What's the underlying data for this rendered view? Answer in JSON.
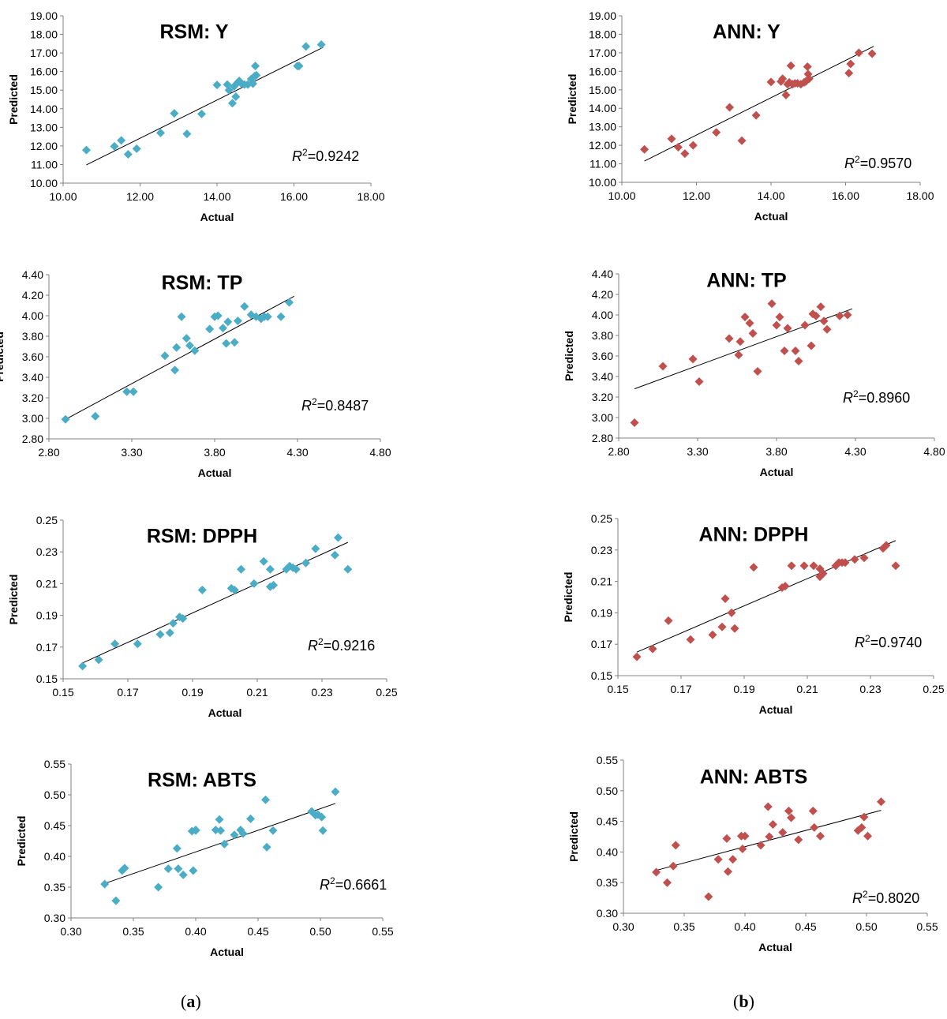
{
  "panel_labels": {
    "a": {
      "open": "(",
      "letter": "a",
      "close": ")"
    },
    "b": {
      "open": "(",
      "letter": "b",
      "close": ")"
    }
  },
  "chart_data": [
    {
      "id": "rsm-y",
      "type": "scatter",
      "title": "RSM: Y",
      "xlabel": "Actual",
      "ylabel": "Predicted",
      "xlim": [
        10,
        19
      ],
      "ylim": [
        10,
        19
      ],
      "xticks": [
        "10.00",
        "12.00",
        "14.00",
        "16.00",
        "18.00"
      ],
      "yticks": [
        "10.00",
        "11.00",
        "12.00",
        "13.00",
        "14.00",
        "15.00",
        "16.00",
        "17.00",
        "18.00",
        "19.00"
      ],
      "r2_label": "R",
      "r2_sup": "2",
      "r2_value": "=0.9242",
      "marker": "diamond",
      "color": "#4bacc6",
      "trend": [
        [
          10.68,
          10.98
        ],
        [
          17.6,
          17.3
        ]
      ],
      "x": [
        10.68,
        11.5,
        11.7,
        11.9,
        12.15,
        12.85,
        13.25,
        13.62,
        14.05,
        14.5,
        14.8,
        14.85,
        14.95,
        15.0,
        15.05,
        15.1,
        15.15,
        15.22,
        15.3,
        15.4,
        15.5,
        15.55,
        15.6,
        15.62,
        15.65,
        16.85,
        16.9,
        17.1,
        17.55
      ],
      "y": [
        11.78,
        11.98,
        12.3,
        11.55,
        11.85,
        12.7,
        13.75,
        12.65,
        13.72,
        15.28,
        15.3,
        15.0,
        14.3,
        15.2,
        14.65,
        15.4,
        15.5,
        15.35,
        15.3,
        15.3,
        15.6,
        15.35,
        15.75,
        16.3,
        15.8,
        16.3,
        16.3,
        17.35,
        17.45
      ]
    },
    {
      "id": "ann-y",
      "type": "scatter",
      "title": "ANN: Y",
      "xlabel": "Actual",
      "ylabel": "Predicted",
      "xlim": [
        10,
        19
      ],
      "ylim": [
        10,
        19
      ],
      "xticks": [
        "10.00",
        "12.00",
        "14.00",
        "16.00",
        "18.00"
      ],
      "yticks": [
        "10.00",
        "11.00",
        "12.00",
        "13.00",
        "14.00",
        "15.00",
        "16.00",
        "17.00",
        "18.00",
        "19.00"
      ],
      "r2_label": "R",
      "r2_sup": "2",
      "r2_value": "=0.9570",
      "marker": "diamond",
      "color": "#c0504d",
      "trend": [
        [
          10.68,
          11.15
        ],
        [
          17.6,
          17.35
        ]
      ],
      "x": [
        10.68,
        11.5,
        11.7,
        11.9,
        12.15,
        12.85,
        13.25,
        13.62,
        14.05,
        14.5,
        14.8,
        14.85,
        14.95,
        15.0,
        15.05,
        15.1,
        15.15,
        15.22,
        15.3,
        15.4,
        15.5,
        15.55,
        15.6,
        15.62,
        15.65,
        16.85,
        16.9,
        17.15,
        17.55
      ],
      "y": [
        11.78,
        12.35,
        11.9,
        11.55,
        12.0,
        12.7,
        14.05,
        12.25,
        13.62,
        15.42,
        15.45,
        15.6,
        14.72,
        15.3,
        15.4,
        16.3,
        15.3,
        15.35,
        15.35,
        15.3,
        15.4,
        15.45,
        16.25,
        15.85,
        15.6,
        15.9,
        16.4,
        17.0,
        16.95
      ]
    },
    {
      "id": "rsm-tp",
      "type": "scatter",
      "title": "RSM: TP",
      "xlabel": "Actual",
      "ylabel": "Predicted",
      "xlim": [
        2.8,
        4.8
      ],
      "ylim": [
        2.8,
        4.4
      ],
      "xticks": [
        "2.80",
        "3.30",
        "3.80",
        "4.30",
        "4.80"
      ],
      "yticks": [
        "2.80",
        "3.00",
        "3.20",
        "3.40",
        "3.60",
        "3.80",
        "4.00",
        "4.20",
        "4.40"
      ],
      "r2_label": "R",
      "r2_sup": "2",
      "r2_value": "=0.8487",
      "marker": "diamond",
      "color": "#4bacc6",
      "trend": [
        [
          2.9,
          2.99
        ],
        [
          4.28,
          4.19
        ]
      ],
      "x": [
        2.9,
        3.08,
        3.27,
        3.31,
        3.5,
        3.56,
        3.57,
        3.6,
        3.63,
        3.65,
        3.68,
        3.77,
        3.8,
        3.82,
        3.85,
        3.87,
        3.88,
        3.92,
        3.94,
        3.98,
        4.02,
        4.05,
        4.08,
        4.1,
        4.12,
        4.2,
        4.25
      ],
      "y": [
        2.99,
        3.02,
        3.26,
        3.26,
        3.61,
        3.47,
        3.69,
        3.99,
        3.78,
        3.71,
        3.66,
        3.87,
        3.99,
        4.0,
        3.88,
        3.73,
        3.94,
        3.74,
        3.95,
        4.09,
        4.01,
        3.99,
        3.97,
        3.99,
        3.99,
        3.99,
        4.13
      ]
    },
    {
      "id": "ann-tp",
      "type": "scatter",
      "title": "ANN: TP",
      "xlabel": "Actual",
      "ylabel": "Predicted",
      "xlim": [
        2.8,
        4.8
      ],
      "ylim": [
        2.8,
        4.4
      ],
      "xticks": [
        "2.80",
        "3.30",
        "3.80",
        "4.30",
        "4.80"
      ],
      "yticks": [
        "2.80",
        "3.00",
        "3.20",
        "3.40",
        "3.60",
        "3.80",
        "4.00",
        "4.20",
        "4.40"
      ],
      "r2_label": "R",
      "r2_sup": "2",
      "r2_value": "=0.8960",
      "marker": "diamond",
      "color": "#c0504d",
      "trend": [
        [
          2.9,
          3.28
        ],
        [
          4.28,
          4.06
        ]
      ],
      "x": [
        2.9,
        3.08,
        3.27,
        3.31,
        3.5,
        3.56,
        3.57,
        3.6,
        3.63,
        3.65,
        3.68,
        3.77,
        3.8,
        3.82,
        3.85,
        3.87,
        3.92,
        3.94,
        3.98,
        4.02,
        4.03,
        4.05,
        4.08,
        4.1,
        4.12,
        4.2,
        4.25
      ],
      "y": [
        2.95,
        3.5,
        3.57,
        3.35,
        3.77,
        3.61,
        3.74,
        3.98,
        3.92,
        3.82,
        3.45,
        4.11,
        3.9,
        3.98,
        3.65,
        3.87,
        3.65,
        3.55,
        3.9,
        3.7,
        4.01,
        3.99,
        4.08,
        3.94,
        3.86,
        3.99,
        4.0
      ]
    },
    {
      "id": "rsm-dpph",
      "type": "scatter",
      "title": "RSM: DPPH",
      "xlabel": "Actual",
      "ylabel": "Predicted",
      "xlim": [
        0.15,
        0.25
      ],
      "ylim": [
        0.15,
        0.25
      ],
      "xticks": [
        "0.15",
        "0.17",
        "0.19",
        "0.21",
        "0.23",
        "0.25"
      ],
      "yticks": [
        "0.15",
        "0.17",
        "0.19",
        "0.21",
        "0.23",
        "0.25"
      ],
      "r2_label": "R",
      "r2_sup": "2",
      "r2_value": "=0.9216",
      "marker": "diamond",
      "color": "#4bacc6",
      "trend": [
        [
          0.156,
          0.16
        ],
        [
          0.238,
          0.236
        ]
      ],
      "x": [
        0.156,
        0.161,
        0.166,
        0.173,
        0.18,
        0.183,
        0.184,
        0.186,
        0.187,
        0.193,
        0.202,
        0.203,
        0.205,
        0.209,
        0.212,
        0.214,
        0.214,
        0.215,
        0.219,
        0.22,
        0.221,
        0.222,
        0.225,
        0.228,
        0.234,
        0.235,
        0.238
      ],
      "y": [
        0.158,
        0.162,
        0.172,
        0.172,
        0.178,
        0.179,
        0.185,
        0.189,
        0.188,
        0.206,
        0.207,
        0.206,
        0.219,
        0.21,
        0.224,
        0.208,
        0.219,
        0.209,
        0.219,
        0.221,
        0.22,
        0.219,
        0.223,
        0.232,
        0.228,
        0.239,
        0.219
      ]
    },
    {
      "id": "ann-dpph",
      "type": "scatter",
      "title": "ANN: DPPH",
      "xlabel": "Actual",
      "ylabel": "Predicted",
      "xlim": [
        0.15,
        0.25
      ],
      "ylim": [
        0.15,
        0.25
      ],
      "xticks": [
        "0.15",
        "0.17",
        "0.19",
        "0.21",
        "0.23",
        "0.25"
      ],
      "yticks": [
        "0.15",
        "0.17",
        "0.19",
        "0.21",
        "0.23",
        "0.25"
      ],
      "r2_label": "R",
      "r2_sup": "2",
      "r2_value": "=0.9740",
      "marker": "diamond",
      "color": "#c0504d",
      "trend": [
        [
          0.156,
          0.165
        ],
        [
          0.238,
          0.236
        ]
      ],
      "x": [
        0.156,
        0.161,
        0.166,
        0.173,
        0.18,
        0.183,
        0.184,
        0.186,
        0.187,
        0.193,
        0.202,
        0.203,
        0.205,
        0.209,
        0.212,
        0.214,
        0.214,
        0.215,
        0.219,
        0.22,
        0.221,
        0.222,
        0.225,
        0.228,
        0.234,
        0.235,
        0.238
      ],
      "y": [
        0.162,
        0.167,
        0.185,
        0.173,
        0.176,
        0.181,
        0.199,
        0.19,
        0.18,
        0.219,
        0.206,
        0.207,
        0.22,
        0.22,
        0.22,
        0.218,
        0.213,
        0.215,
        0.22,
        0.222,
        0.222,
        0.222,
        0.224,
        0.225,
        0.231,
        0.233,
        0.22
      ]
    },
    {
      "id": "rsm-abts",
      "type": "scatter",
      "title": "RSM: ABTS",
      "xlabel": "Actual",
      "ylabel": "Predicted",
      "xlim": [
        0.3,
        0.55
      ],
      "ylim": [
        0.3,
        0.55
      ],
      "xticks": [
        "0.30",
        "0.35",
        "0.40",
        "0.45",
        "0.50",
        "0.55"
      ],
      "yticks": [
        "0.30",
        "0.35",
        "0.40",
        "0.45",
        "0.50",
        "0.55"
      ],
      "r2_label": "R",
      "r2_sup": "2",
      "r2_value": "=0.6661",
      "marker": "diamond",
      "color": "#4bacc6",
      "trend": [
        [
          0.327,
          0.356
        ],
        [
          0.512,
          0.486
        ]
      ],
      "x": [
        0.327,
        0.336,
        0.341,
        0.343,
        0.37,
        0.378,
        0.385,
        0.386,
        0.39,
        0.397,
        0.398,
        0.4,
        0.4,
        0.416,
        0.419,
        0.42,
        0.423,
        0.431,
        0.436,
        0.438,
        0.444,
        0.456,
        0.457,
        0.462,
        0.493,
        0.496,
        0.498,
        0.501,
        0.502,
        0.512
      ],
      "y": [
        0.355,
        0.328,
        0.377,
        0.381,
        0.35,
        0.38,
        0.413,
        0.38,
        0.37,
        0.441,
        0.377,
        0.443,
        0.442,
        0.443,
        0.46,
        0.442,
        0.42,
        0.435,
        0.443,
        0.437,
        0.461,
        0.492,
        0.415,
        0.442,
        0.473,
        0.467,
        0.468,
        0.464,
        0.442,
        0.505
      ]
    },
    {
      "id": "ann-abts",
      "type": "scatter",
      "title": "ANN: ABTS",
      "xlabel": "Actual",
      "ylabel": "Predicted",
      "xlim": [
        0.3,
        0.55
      ],
      "ylim": [
        0.3,
        0.55
      ],
      "xticks": [
        "0.30",
        "0.35",
        "0.40",
        "0.45",
        "0.50",
        "0.55"
      ],
      "yticks": [
        "0.30",
        "0.35",
        "0.40",
        "0.45",
        "0.50",
        "0.55"
      ],
      "r2_label": "R",
      "r2_sup": "2",
      "r2_value": "=0.8020",
      "marker": "diamond",
      "color": "#c0504d",
      "trend": [
        [
          0.327,
          0.37
        ],
        [
          0.512,
          0.468
        ]
      ],
      "x": [
        0.327,
        0.336,
        0.341,
        0.343,
        0.37,
        0.378,
        0.385,
        0.386,
        0.39,
        0.397,
        0.398,
        0.4,
        0.413,
        0.419,
        0.42,
        0.423,
        0.431,
        0.436,
        0.438,
        0.444,
        0.456,
        0.457,
        0.462,
        0.493,
        0.496,
        0.498,
        0.501,
        0.512
      ],
      "y": [
        0.367,
        0.35,
        0.377,
        0.411,
        0.327,
        0.388,
        0.422,
        0.368,
        0.388,
        0.426,
        0.405,
        0.426,
        0.411,
        0.474,
        0.425,
        0.445,
        0.432,
        0.467,
        0.456,
        0.42,
        0.467,
        0.44,
        0.426,
        0.435,
        0.44,
        0.457,
        0.426,
        0.482
      ]
    }
  ]
}
